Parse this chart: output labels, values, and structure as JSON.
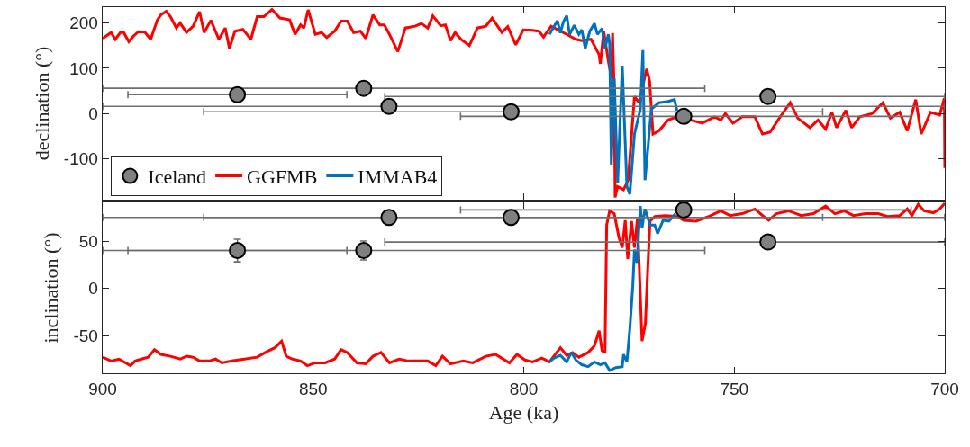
{
  "chart_data": [
    {
      "type": "line",
      "ylabel": "declination (°)",
      "xlim": [
        900,
        700
      ],
      "xticks": [
        900,
        850,
        800,
        750,
        700
      ],
      "ylim": [
        -190,
        235
      ],
      "yticks": [
        -100,
        0,
        100,
        200
      ],
      "tick_labels": "y",
      "grid": false,
      "legend": "bottom left",
      "series": [
        {
          "name": "Iceland",
          "type": "scatter",
          "marker": "circle",
          "color": "#808080",
          "x": [
            868,
            838,
            832,
            803,
            762,
            742
          ],
          "values": [
            42,
            56,
            16,
            4,
            -6,
            38
          ],
          "xerrors": [
            26,
            [
              757,
              900
            ],
            [
              700,
              900
            ],
            [
              729,
              876
            ],
            [
              708,
              815
            ],
            [
              700,
              833
            ]
          ]
        },
        {
          "name": "GGFMB",
          "color": "#ff0000",
          "x": [
            900,
            898,
            897,
            895.7,
            895,
            893.8,
            892.7,
            891.5,
            890,
            888.6,
            887,
            886.2,
            884.9,
            883.9,
            882.5,
            881.6,
            880.1,
            878.5,
            877,
            875.9,
            874.3,
            872.4,
            870.9,
            869.9,
            868.6,
            866.7,
            864.8,
            863.3,
            861.7,
            859.8,
            857.9,
            855.6,
            854.3,
            853,
            852.2,
            851.2,
            849.5,
            848,
            846.8,
            844.9,
            843.4,
            841.9,
            840.4,
            838.8,
            837.5,
            835.8,
            834.2,
            833.1,
            831.9,
            829.9,
            828.1,
            825.8,
            824.3,
            822.8,
            821.6,
            819.7,
            818.6,
            817.4,
            816.3,
            814.8,
            812.9,
            811,
            809,
            807.5,
            805.2,
            803.8,
            801.9,
            800.1,
            797.9,
            796.4,
            795.3,
            793.5,
            791.3,
            789.8,
            787.6,
            786.2,
            784,
            782.1,
            781.8,
            781,
            779.9,
            779.2,
            778.9,
            778.5,
            778.3,
            777.7,
            776.3,
            775.2,
            773.7,
            772.6,
            770.8,
            770.1,
            769.3,
            767.9,
            765.7,
            763.5,
            760.5,
            757.6,
            754.7,
            753.2,
            752.1,
            750.3,
            748.1,
            745.1,
            743.3,
            741.5,
            739.3,
            736.7,
            734.9,
            732,
            730.1,
            728.3,
            726.8,
            725.7,
            723.5,
            722.1,
            720.2,
            717.3,
            714.7,
            712.9,
            710.7,
            708.9,
            706.9,
            705.6,
            703.4,
            701.2,
            700.1,
            700
          ],
          "values": [
            166,
            179,
            164,
            180,
            179,
            159,
            171,
            181,
            180,
            164,
            207,
            218,
            226,
            214,
            189,
            200,
            179,
            193,
            225,
            179,
            206,
            164,
            189,
            144,
            182,
            186,
            164,
            214,
            214,
            230,
            211,
            207,
            175,
            196,
            189,
            229,
            175,
            179,
            168,
            182,
            204,
            204,
            179,
            182,
            166,
            218,
            196,
            196,
            175,
            137,
            189,
            193,
            199,
            189,
            216,
            194,
            196,
            161,
            179,
            163,
            150,
            189,
            193,
            211,
            179,
            192,
            152,
            185,
            184,
            182,
            169,
            193,
            182,
            175,
            164,
            161,
            164,
            130,
            110,
            182,
            116,
            79,
            178,
            45,
            -185,
            -161,
            -168,
            -147,
            38,
            24,
            99,
            72,
            -45,
            -38,
            -14,
            -7,
            -14,
            -21,
            -7,
            -14,
            0,
            -21,
            -7,
            -7,
            -45,
            -41,
            -10,
            24,
            -10,
            -31,
            -14,
            -34,
            3,
            -31,
            7,
            -31,
            -7,
            0,
            24,
            -10,
            3,
            -38,
            31,
            -45,
            3,
            -3,
            34,
            -120
          ]
        },
        {
          "name": "IMMAB4",
          "color": "#0072bd",
          "x": [
            793.9,
            792,
            791.3,
            790.6,
            789.8,
            789.1,
            788,
            786.9,
            786.2,
            785.4,
            784.3,
            783.2,
            782.5,
            781.4,
            780.7,
            779.9,
            779.6,
            779.2,
            778.5,
            777.7,
            776.6,
            775.5,
            774.8,
            773.7,
            772.3,
            771.7,
            771.2,
            770.4,
            769.7,
            767.9,
            765.7,
            764.2,
            763.6
          ],
          "values": [
            175,
            205,
            178,
            202,
            216,
            175,
            195,
            175,
            185,
            144,
            182,
            199,
            175,
            188,
            144,
            175,
            154,
            -113,
            79,
            -154,
            106,
            -161,
            -178,
            -45,
            10,
            140,
            -147,
            -65,
            10,
            24,
            27,
            31,
            7
          ]
        }
      ]
    },
    {
      "type": "line",
      "ylabel": "inclination (°)",
      "xlabel": "Age (ka)",
      "xlim": [
        900,
        700
      ],
      "xticks": [
        900,
        850,
        800,
        750,
        700
      ],
      "ylim": [
        -90,
        91
      ],
      "yticks": [
        -50,
        0,
        50
      ],
      "grid": false,
      "series": [
        {
          "type": "scatter",
          "marker": "circle",
          "color": "#808080",
          "x": [
            868,
            838,
            832,
            803,
            762,
            742
          ],
          "values": [
            40,
            40,
            75,
            75,
            83,
            49
          ],
          "errors": [
            12,
            10,
            null,
            null,
            null,
            null
          ],
          "xerrors": [
            26,
            [
              757,
              900
            ],
            [
              700,
              900
            ],
            [
              729,
              876
            ],
            [
              708,
              815
            ],
            [
              700,
              833
            ]
          ]
        },
        {
          "color": "#ff0000",
          "x": [
            900,
            898,
            896.1,
            893.4,
            892.3,
            890.8,
            889.2,
            887.7,
            886.2,
            883.9,
            881.6,
            880.1,
            878.5,
            877,
            874.7,
            873.2,
            871.7,
            869.4,
            866.3,
            863.3,
            861,
            859.1,
            857.5,
            856.4,
            854.9,
            853,
            851.4,
            849.5,
            847.2,
            844.9,
            843.4,
            841.9,
            839.6,
            837.5,
            835.8,
            833.9,
            831.9,
            829.6,
            827.4,
            825.1,
            822.8,
            820.9,
            819.3,
            817.4,
            814.4,
            812.1,
            809,
            806.7,
            805.6,
            803.4,
            801.6,
            799.7,
            797.9,
            795.7,
            793.9,
            791.3,
            789.8,
            788.4,
            786.9,
            784.7,
            783.2,
            782.1,
            781.4,
            780.7,
            780.3,
            779.6,
            778.5,
            777.4,
            776.6,
            775.9,
            775.3,
            774.4,
            773.7,
            773,
            771.9,
            771.1,
            770.4,
            770,
            768.9,
            766.4,
            763.5,
            762,
            759.1,
            756.1,
            753.2,
            751,
            748.1,
            745.1,
            743,
            741.8,
            740,
            737.1,
            734.1,
            731.2,
            728.3,
            726.1,
            723.9,
            721.7,
            718.8,
            715.8,
            713.6,
            710.7,
            708.9,
            707.8,
            706.3,
            704.9,
            702.7,
            701.2,
            700
          ],
          "values": [
            -73,
            -77,
            -75,
            -82,
            -77,
            -75,
            -73,
            -65,
            -70,
            -72,
            -75,
            -72,
            -73,
            -77,
            -77,
            -75,
            -79,
            -77,
            -75,
            -73,
            -67,
            -63,
            -56,
            -72,
            -75,
            -77,
            -82,
            -79,
            -79,
            -75,
            -65,
            -68,
            -79,
            -80,
            -72,
            -68,
            -79,
            -75,
            -77,
            -77,
            -77,
            -82,
            -72,
            -80,
            -77,
            -79,
            -72,
            -70,
            -73,
            -79,
            -70,
            -76,
            -78,
            -74,
            -78,
            -63,
            -71,
            -68,
            -73,
            -68,
            -61,
            -45,
            -66,
            -68,
            67,
            82,
            79,
            54,
            43,
            72,
            31,
            71,
            43,
            74,
            -56,
            -37,
            35,
            71,
            76,
            77,
            76,
            72,
            71,
            76,
            82,
            77,
            79,
            84,
            76,
            72,
            79,
            82,
            77,
            79,
            87,
            79,
            82,
            77,
            79,
            79,
            76,
            77,
            84,
            77,
            89,
            82,
            80,
            84,
            90
          ]
        },
        {
          "color": "#0072bd",
          "x": [
            793.9,
            792.8,
            791.3,
            789.8,
            788.7,
            787.6,
            786.2,
            784.7,
            783.2,
            781.8,
            780.7,
            779.6,
            778.1,
            776.6,
            776.3,
            775.5,
            774.8,
            774.1,
            773.7,
            773.1,
            772.6,
            772.3,
            771.9,
            771.2,
            770,
            768.9,
            768.2,
            766.9,
            765.5,
            764
          ],
          "values": [
            -78,
            -74,
            -71,
            -78,
            -68,
            -76,
            -81,
            -83,
            -78,
            -81,
            -79,
            -87,
            -84,
            -83,
            -70,
            -78,
            -43,
            2,
            41,
            27,
            67,
            87,
            64,
            84,
            67,
            67,
            58,
            72,
            71,
            79
          ]
        }
      ]
    }
  ]
}
